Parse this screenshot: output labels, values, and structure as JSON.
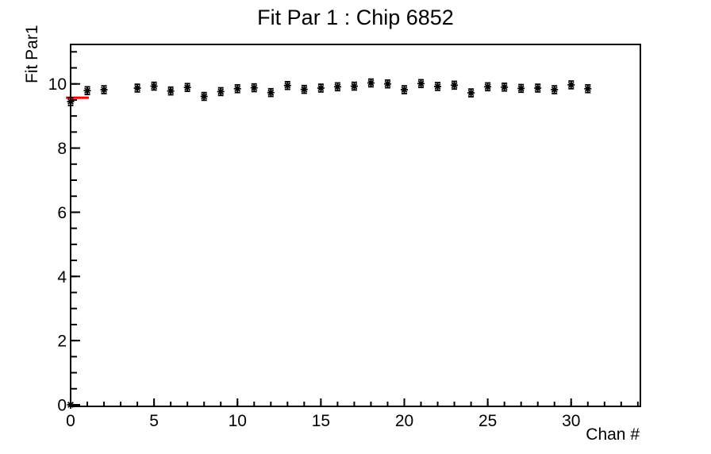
{
  "canvas": {
    "background": "#ffffff",
    "frame_color": "#000000"
  },
  "chart_data": {
    "type": "scatter",
    "title": "Fit Par 1 : Chip 6852",
    "xlabel": "Chan #",
    "ylabel": "Fit Par1",
    "xlim": [
      0,
      34.15
    ],
    "ylim": [
      -0.05,
      11.23
    ],
    "x_major_ticks": [
      0,
      5,
      10,
      15,
      20,
      25,
      30
    ],
    "x_minor_step": 1,
    "y_major_ticks": [
      0,
      2,
      4,
      6,
      8,
      10
    ],
    "y_minor_step": 0.5,
    "grid": false,
    "legend": null,
    "marker_style": "star-with-error-bars",
    "marker_color": "#000000",
    "error": 0.12,
    "series": [
      {
        "name": "fit-par1-vs-channel",
        "points": [
          [
            0,
            9.45
          ],
          [
            1,
            9.79
          ],
          [
            2,
            9.82
          ],
          [
            4,
            9.87
          ],
          [
            5,
            9.93
          ],
          [
            6,
            9.78
          ],
          [
            7,
            9.89
          ],
          [
            8,
            9.61
          ],
          [
            9,
            9.76
          ],
          [
            10,
            9.85
          ],
          [
            11,
            9.88
          ],
          [
            12,
            9.73
          ],
          [
            13,
            9.95
          ],
          [
            14,
            9.83
          ],
          [
            15,
            9.87
          ],
          [
            16,
            9.91
          ],
          [
            17,
            9.93
          ],
          [
            18,
            10.03
          ],
          [
            19,
            10.0
          ],
          [
            20,
            9.82
          ],
          [
            21,
            10.01
          ],
          [
            22,
            9.92
          ],
          [
            23,
            9.96
          ],
          [
            24,
            9.72
          ],
          [
            25,
            9.91
          ],
          [
            26,
            9.9
          ],
          [
            27,
            9.86
          ],
          [
            28,
            9.87
          ],
          [
            29,
            9.82
          ],
          [
            30,
            9.97
          ],
          [
            31,
            9.85
          ]
        ]
      }
    ],
    "origin_point": [
      0,
      0
    ],
    "highlight_segment": {
      "x1": -0.28,
      "x2": 1.09,
      "y": 9.57,
      "color": "#ff0000"
    }
  }
}
